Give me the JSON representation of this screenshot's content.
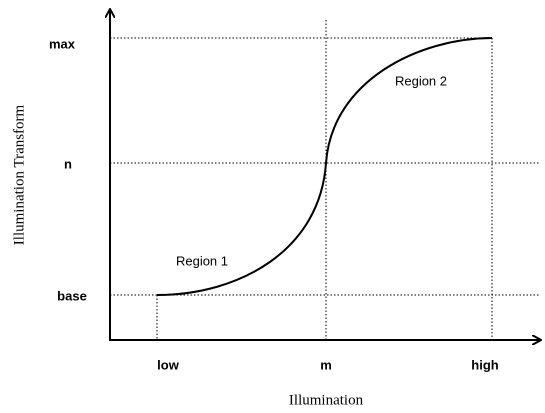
{
  "y_axis": {
    "label": "Illumination Transform",
    "ticks": [
      "max",
      "n",
      "base"
    ]
  },
  "x_axis": {
    "label": "Illumination",
    "ticks": [
      "low",
      "m",
      "high"
    ]
  },
  "regions": [
    "Region 1",
    "Region 2"
  ]
}
